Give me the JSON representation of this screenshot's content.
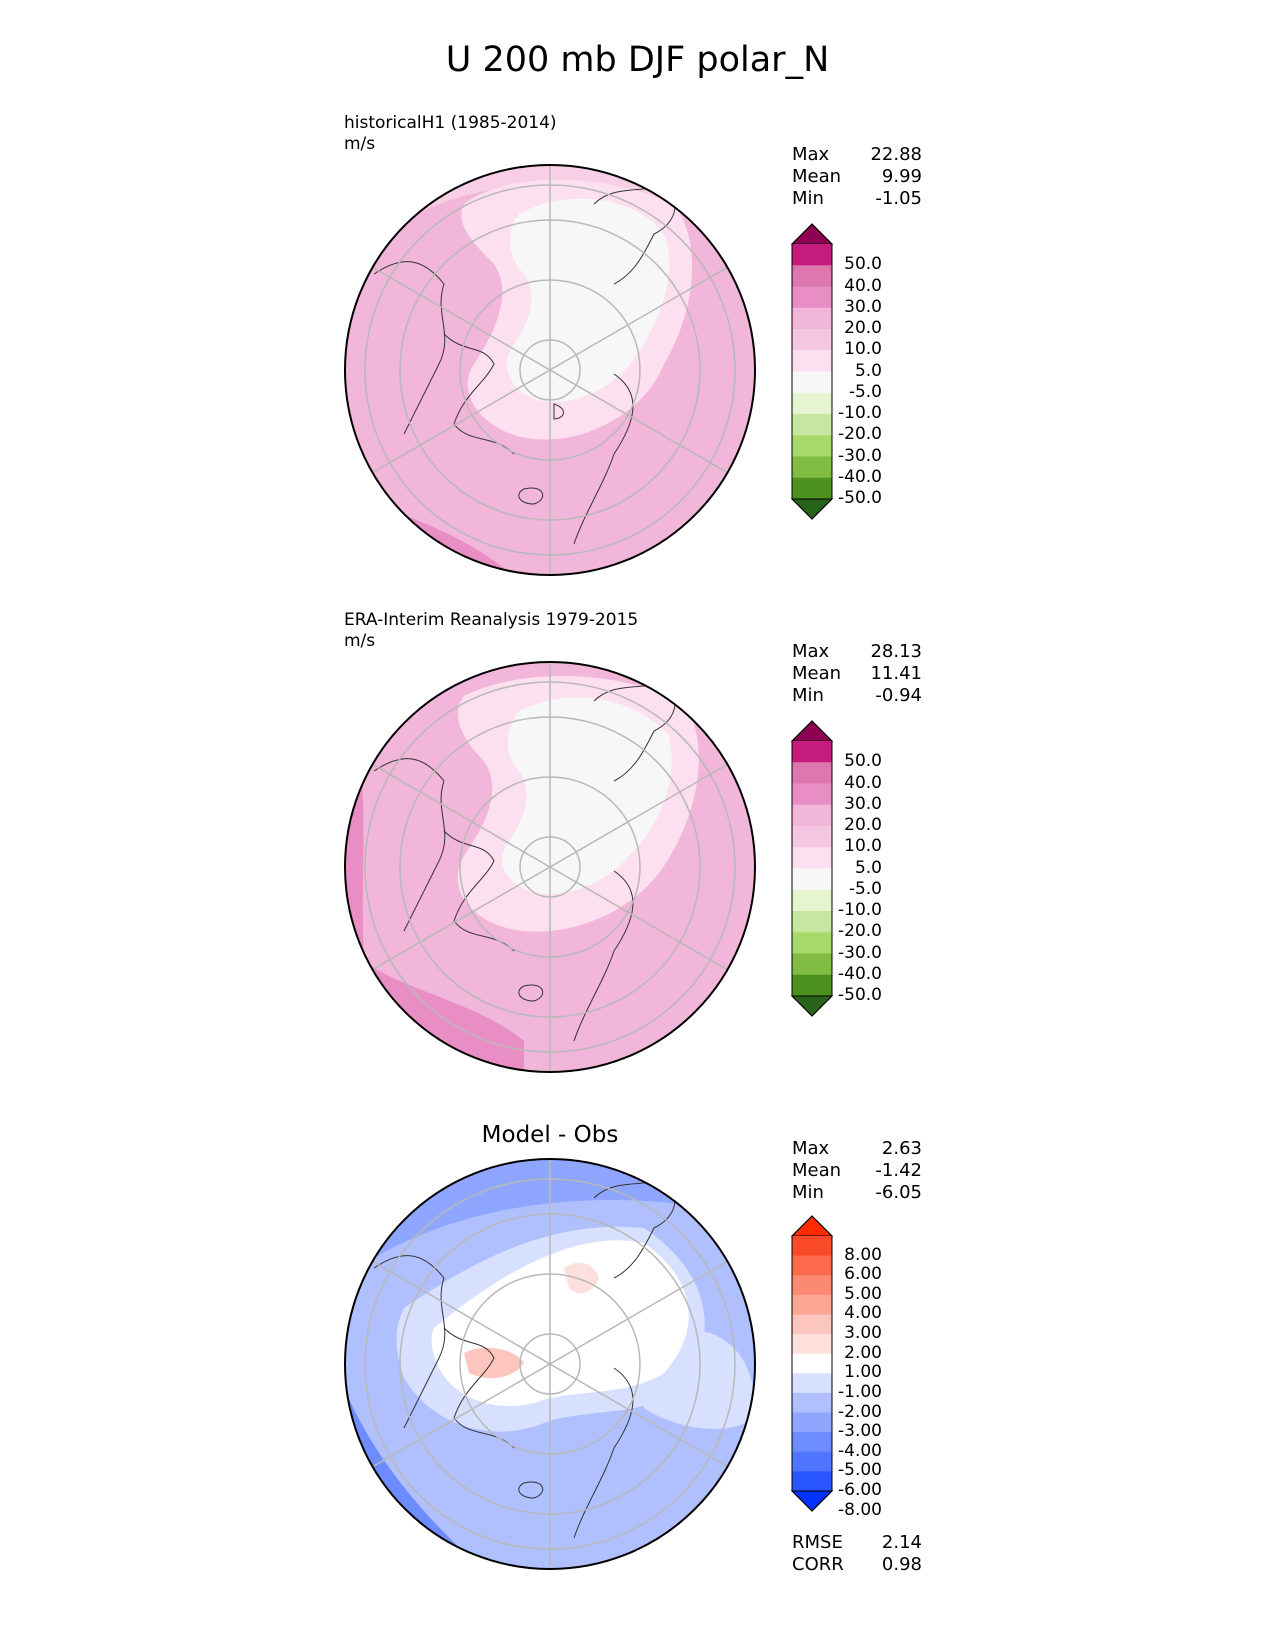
{
  "figure": {
    "title": "U 200 mb DJF polar_N"
  },
  "colors": {
    "pink_scale": [
      "#276419",
      "#4d9221",
      "#7fbc41",
      "#a6d96a",
      "#c7e7a0",
      "#e6f5d0",
      "#f7f7f7",
      "#fde0ef",
      "#f5c6e2",
      "#f1b6da",
      "#e88ec5",
      "#de77ae",
      "#c51b7d",
      "#8e0152"
    ],
    "diff_scale": [
      "#0033ff",
      "#2a56ff",
      "#4f74ff",
      "#6d8cff",
      "#8ea6ff",
      "#b0c0ff",
      "#d8e0ff",
      "#ffffff",
      "#fde0dc",
      "#fcc5bd",
      "#fca695",
      "#fc8a73",
      "#fb6a4a",
      "#fb4a2a",
      "#ff2a00"
    ]
  },
  "panels": [
    {
      "id": "model",
      "label_line1": "historicalH1 (1985-2014)",
      "label_line2": "m/s",
      "center_title": "",
      "stats": [
        {
          "name": "Max",
          "value": "22.88"
        },
        {
          "name": "Mean",
          "value": "9.99"
        },
        {
          "name": "Min",
          "value": "-1.05"
        }
      ],
      "extra_stats": []
    },
    {
      "id": "obs",
      "label_line1": "ERA-Interim Reanalysis 1979-2015",
      "label_line2": "m/s",
      "center_title": "",
      "stats": [
        {
          "name": "Max",
          "value": "28.13"
        },
        {
          "name": "Mean",
          "value": "11.41"
        },
        {
          "name": "Min",
          "value": "-0.94"
        }
      ],
      "extra_stats": []
    },
    {
      "id": "diff",
      "label_line1": "",
      "label_line2": "",
      "center_title": "Model - Obs",
      "stats": [
        {
          "name": "Max",
          "value": "2.63"
        },
        {
          "name": "Mean",
          "value": "-1.42"
        },
        {
          "name": "Min",
          "value": "-6.05"
        }
      ],
      "extra_stats": [
        {
          "name": "RMSE",
          "value": "2.14"
        },
        {
          "name": "CORR",
          "value": "0.98"
        }
      ]
    }
  ],
  "chart_data": [
    {
      "type": "heatmap",
      "projection": "north polar stereographic",
      "title": "historicalH1 (1985-2014)",
      "units": "m/s",
      "colorbar_levels": [
        "50.0",
        "40.0",
        "30.0",
        "20.0",
        "10.0",
        "5.0",
        "-5.0",
        "-10.0",
        "-20.0",
        "-30.0",
        "-40.0",
        "-50.0"
      ],
      "max": 22.88,
      "mean": 9.99,
      "min": -1.05
    },
    {
      "type": "heatmap",
      "projection": "north polar stereographic",
      "title": "ERA-Interim Reanalysis 1979-2015",
      "units": "m/s",
      "colorbar_levels": [
        "50.0",
        "40.0",
        "30.0",
        "20.0",
        "10.0",
        "5.0",
        "-5.0",
        "-10.0",
        "-20.0",
        "-30.0",
        "-40.0",
        "-50.0"
      ],
      "max": 28.13,
      "mean": 11.41,
      "min": -0.94
    },
    {
      "type": "heatmap",
      "projection": "north polar stereographic",
      "title": "Model - Obs",
      "colorbar_levels": [
        "8.00",
        "6.00",
        "5.00",
        "4.00",
        "3.00",
        "2.00",
        "1.00",
        "-1.00",
        "-2.00",
        "-3.00",
        "-4.00",
        "-5.00",
        "-6.00",
        "-8.00"
      ],
      "max": 2.63,
      "mean": -1.42,
      "min": -6.05,
      "rmse": 2.14,
      "corr": 0.98
    }
  ]
}
